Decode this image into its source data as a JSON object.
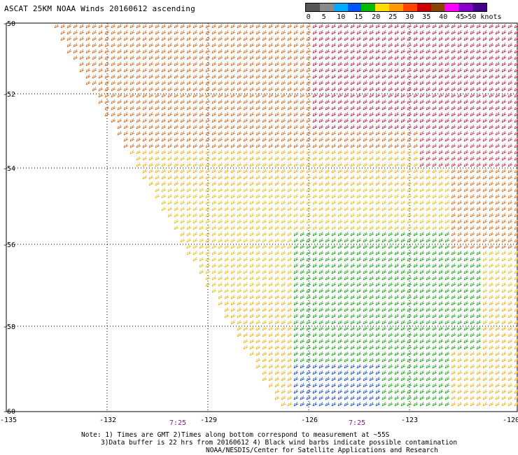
{
  "title": "ASCAT 25KM NOAA Winds 20160612 ascending",
  "legend": {
    "colors": [
      "#555555",
      "#8a8a8a",
      "#00aaff",
      "#0055ff",
      "#00bb00",
      "#ffdd00",
      "#ff9900",
      "#ff4400",
      "#cc0000",
      "#884400",
      "#ff00ff",
      "#8800cc",
      "#440088"
    ],
    "labels": [
      "0",
      "5",
      "10",
      "15",
      "20",
      "25",
      "30",
      "35",
      "40",
      "45",
      ">50 knots"
    ]
  },
  "axes": {
    "x_ticks": [
      "-135",
      "-132",
      "-129",
      "-126",
      "-123",
      "-120"
    ],
    "y_ticks": [
      "-50",
      "-52",
      "-54",
      "-56",
      "-58",
      "-60"
    ]
  },
  "time_labels": [
    "7:25",
    "7:25"
  ],
  "notes": {
    "line1": "Note: 1) Times are GMT 2)Times along bottom correspond to measurement at ~55S",
    "line2": "3)Data buffer is 22 hrs from 20160612 4) Black wind barbs indicate possible contamination",
    "line3": "NOAA/NESDIS/Center for Satellite Applications and Research"
  }
}
